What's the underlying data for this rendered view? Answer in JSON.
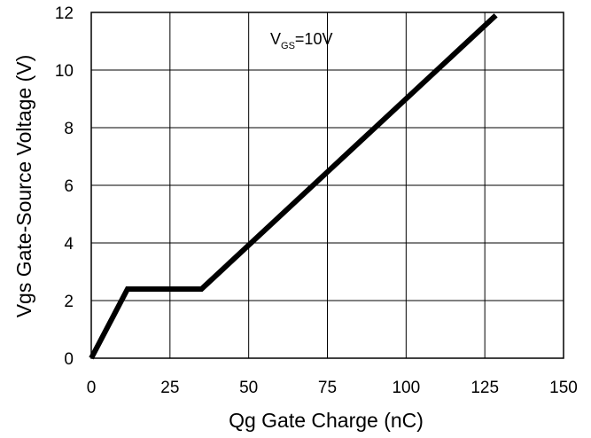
{
  "chart_data": {
    "type": "line",
    "title": "",
    "xlabel": "Qg Gate Charge (nC)",
    "ylabel": "Vgs Gate-Source Voltage (V)",
    "xlim": [
      0,
      150
    ],
    "ylim": [
      0,
      12
    ],
    "xticks": [
      0,
      25,
      50,
      75,
      100,
      125,
      150
    ],
    "yticks": [
      0,
      2,
      4,
      6,
      8,
      10,
      12
    ],
    "xtick_labels": [
      "0",
      "25",
      "50",
      "75",
      "100",
      "125",
      "150"
    ],
    "ytick_labels": [
      "0",
      "2",
      "4",
      "6",
      "8",
      "10",
      "12"
    ],
    "grid": true,
    "legend": "none",
    "annotation": {
      "main": "V",
      "sub": "GS",
      "suffix": "=10V"
    },
    "series": [
      {
        "line_color": "#000000",
        "x": [
          0,
          11.5,
          35,
          128.5
        ],
        "y": [
          0,
          2.4,
          2.4,
          11.9
        ]
      }
    ]
  }
}
